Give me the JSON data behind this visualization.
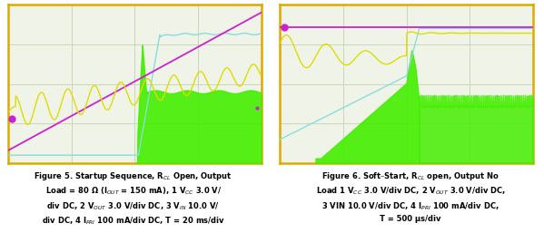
{
  "fig_width": 5.99,
  "fig_height": 2.57,
  "dpi": 100,
  "plot_bg": "#f0f4e8",
  "grid_color": "#c8d8b8",
  "border_color": "#ddaa00",
  "cap5_lines": [
    "Figure 5. Startup Sequence, R$_{CL}$ Open, Output",
    "Load = 80 Ω (I$_{OUT}$ = 150 mA), 1 V$_{CC}$ 3.0 V/",
    "div DC, 2 V$_{OUT}$ 3.0 V/div DC, 3 V$_{IN}$ 10.0 V/",
    "div DC, 4 I$_{PRI}$ 100 mA/div DC, T = 20 ms/div"
  ],
  "cap6_lines": [
    "Figure 6. Soft–Start, R$_{CL}$ open, Output No",
    "Load 1 V$_{CC}$ 3.0 V/div DC, 2 V$_{OUT}$ 3.0 V/div DC,",
    "3 VIN 10.0 V/div DC, 4 I$_{PRI}$ 100 mA/div DC,",
    "T = 500 μs/div"
  ],
  "magenta": "#cc22cc",
  "yellow": "#dddd00",
  "cyan": "#88dddd",
  "green": "#44ee00"
}
